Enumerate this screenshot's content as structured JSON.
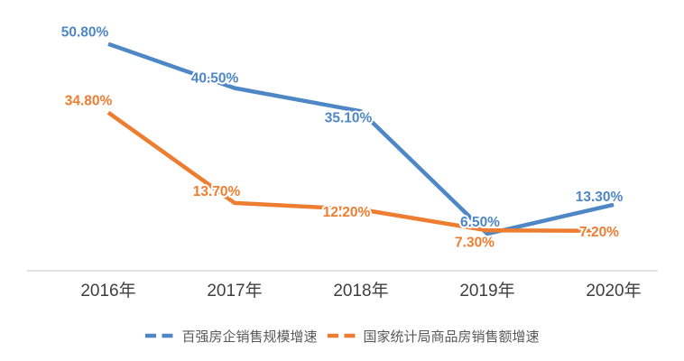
{
  "chart_data": {
    "type": "line",
    "categories": [
      "2016年",
      "2017年",
      "2018年",
      "2019年",
      "2020年"
    ],
    "series": [
      {
        "name": "百强房企销售规模增速",
        "color": "#4E87C6",
        "values": [
          50.8,
          40.5,
          35.1,
          6.5,
          13.3
        ],
        "labels": [
          "50.80%",
          "40.50%",
          "35.10%",
          "6.50%",
          "13.30%"
        ],
        "label_offsets": [
          [
            -26,
            -8
          ],
          [
            -22,
            -6
          ],
          [
            -14,
            12
          ],
          [
            -8,
            -8
          ],
          [
            -16,
            -4
          ]
        ]
      },
      {
        "name": "国家统计局商品房销售额增速",
        "color": "#ED7D31",
        "values": [
          34.8,
          13.7,
          12.2,
          7.3,
          7.2
        ],
        "labels": [
          "34.80%",
          "13.70%",
          "12.20%",
          "7.30%",
          "7.20%"
        ],
        "label_offsets": [
          [
            -22,
            -8
          ],
          [
            -20,
            -8
          ],
          [
            -16,
            8
          ],
          [
            -14,
            18
          ],
          [
            -16,
            6
          ]
        ]
      }
    ],
    "ylim": [
      0,
      55
    ],
    "grid": false,
    "legend_position": "bottom",
    "axis_line_color": "#D9D9D9",
    "title": "",
    "xlabel": "",
    "ylabel": ""
  }
}
